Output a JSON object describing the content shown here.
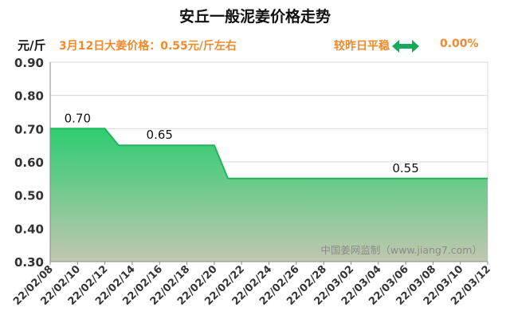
{
  "header": {
    "title": "安丘一般泥姜价格走势",
    "unit": "元/斤",
    "price_line": "3月12日大姜价格：0.55元/斤左右",
    "compare_label": "较昨日平稳",
    "change": "0.00%"
  },
  "colors": {
    "accent_orange": "#f08a2c",
    "arrow_green": "#18a85a",
    "area_top": "#2ecc71",
    "area_bottom": "#c2c7b0",
    "line": "#22b45a"
  },
  "watermark": "中国姜网监制（www.jiang7.com）",
  "chart_data": {
    "type": "area",
    "x": [
      "22/02/08",
      "22/02/09",
      "22/02/10",
      "22/02/11",
      "22/02/12",
      "22/02/13",
      "22/02/14",
      "22/02/15",
      "22/02/16",
      "22/02/17",
      "22/02/18",
      "22/02/19",
      "22/02/20",
      "22/02/21",
      "22/02/22",
      "22/02/23",
      "22/02/24",
      "22/02/25",
      "22/02/26",
      "22/02/27",
      "22/02/28",
      "22/03/01",
      "22/03/02",
      "22/03/03",
      "22/03/04",
      "22/03/05",
      "22/03/06",
      "22/03/07",
      "22/03/08",
      "22/03/09",
      "22/03/10",
      "22/03/11",
      "22/03/12"
    ],
    "series": [
      {
        "values": [
          0.7,
          0.7,
          0.7,
          0.7,
          0.7,
          0.65,
          0.65,
          0.65,
          0.65,
          0.65,
          0.65,
          0.65,
          0.65,
          0.55,
          0.55,
          0.55,
          0.55,
          0.55,
          0.55,
          0.55,
          0.55,
          0.55,
          0.55,
          0.55,
          0.55,
          0.55,
          0.55,
          0.55,
          0.55,
          0.55,
          0.55,
          0.55,
          0.55
        ]
      }
    ],
    "xtick_labels": [
      "22/02/08",
      "22/02/10",
      "22/02/12",
      "22/02/14",
      "22/02/16",
      "22/02/18",
      "22/02/20",
      "22/02/22",
      "22/02/24",
      "22/02/26",
      "22/02/28",
      "22/03/02",
      "22/03/04",
      "22/03/06",
      "22/03/08",
      "22/03/10",
      "22/03/12"
    ],
    "ytick_labels": [
      "0.30",
      "0.40",
      "0.50",
      "0.60",
      "0.70",
      "0.80",
      "0.90"
    ],
    "ylim": [
      0.3,
      0.9
    ],
    "annotations": [
      {
        "x": "22/02/10",
        "text": "0.70"
      },
      {
        "x": "22/02/16",
        "text": "0.65"
      },
      {
        "x": "22/03/06",
        "text": "0.55"
      }
    ],
    "grid": true,
    "legend": "none"
  }
}
